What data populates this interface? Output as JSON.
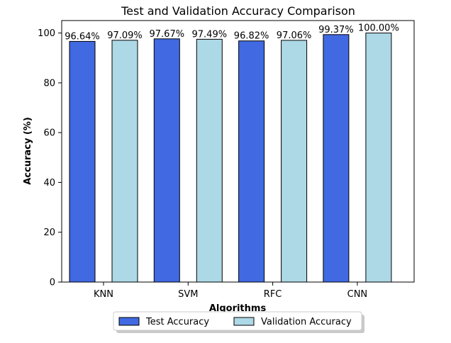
{
  "chart_data": {
    "type": "bar",
    "title": "Test and Validation Accuracy Comparison",
    "xlabel": "Algorithms",
    "ylabel": "Accuracy (%)",
    "categories": [
      "KNN",
      "SVM",
      "RFC",
      "CNN"
    ],
    "ylim": [
      0,
      105
    ],
    "yticks": [
      0,
      20,
      40,
      60,
      80,
      100
    ],
    "series": [
      {
        "name": "Test Accuracy",
        "color": "#4169e1",
        "values": [
          96.64,
          97.67,
          96.82,
          99.37
        ],
        "labels": [
          "96.64%",
          "97.67%",
          "96.82%",
          "99.37%"
        ]
      },
      {
        "name": "Validation Accuracy",
        "color": "#add8e6",
        "values": [
          97.09,
          97.49,
          97.06,
          100.0
        ],
        "labels": [
          "97.09%",
          "97.49%",
          "97.06%",
          "100.00%"
        ]
      }
    ],
    "grid": false,
    "legend_position": "bottom-center"
  }
}
